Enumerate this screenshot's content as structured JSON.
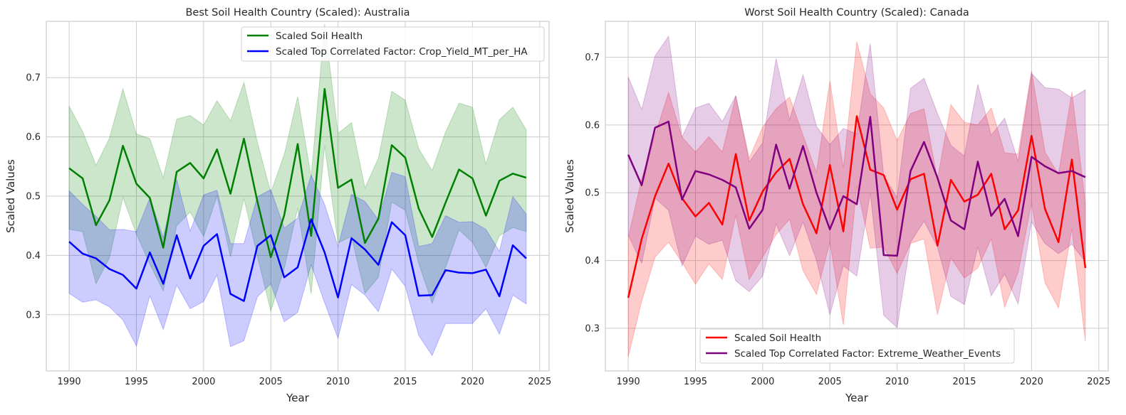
{
  "figure": {
    "background": "#ffffff",
    "plot_background": "#ffffff",
    "grid_color": "#cccccc"
  },
  "chart_data": [
    {
      "type": "line",
      "title": "Best Soil Health Country (Scaled): Australia",
      "xlabel": "Year",
      "ylabel": "Scaled Values",
      "xlim": [
        1988.3,
        2025.7
      ],
      "ylim": [
        0.205,
        0.795
      ],
      "xticks": [
        1990,
        1995,
        2000,
        2005,
        2010,
        2015,
        2020,
        2025
      ],
      "yticks": [
        0.3,
        0.4,
        0.5,
        0.6,
        0.7
      ],
      "grid": true,
      "legend_position": "upper right",
      "x": [
        1990,
        1991,
        1992,
        1993,
        1994,
        1995,
        1996,
        1997,
        1998,
        1999,
        2000,
        2001,
        2002,
        2003,
        2004,
        2005,
        2006,
        2007,
        2008,
        2009,
        2010,
        2011,
        2012,
        2013,
        2014,
        2015,
        2016,
        2017,
        2018,
        2019,
        2020,
        2021,
        2022,
        2023,
        2024
      ],
      "series": [
        {
          "name": "Scaled Soil Health",
          "color": "#008000",
          "values": [
            0.547,
            0.53,
            0.451,
            0.493,
            0.585,
            0.521,
            0.497,
            0.413,
            0.541,
            0.556,
            0.53,
            0.579,
            0.504,
            0.597,
            0.491,
            0.397,
            0.468,
            0.588,
            0.433,
            0.681,
            0.514,
            0.528,
            0.421,
            0.462,
            0.586,
            0.565,
            0.479,
            0.431,
            0.489,
            0.545,
            0.53,
            0.467,
            0.526,
            0.538,
            0.531
          ],
          "upper": [
            0.652,
            0.609,
            0.552,
            0.598,
            0.681,
            0.605,
            0.597,
            0.531,
            0.63,
            0.636,
            0.62,
            0.661,
            0.627,
            0.692,
            0.591,
            0.506,
            0.57,
            0.668,
            0.532,
            0.79,
            0.606,
            0.624,
            0.514,
            0.564,
            0.677,
            0.662,
            0.58,
            0.543,
            0.608,
            0.657,
            0.65,
            0.554,
            0.629,
            0.65,
            0.612
          ],
          "lower": [
            0.444,
            0.44,
            0.352,
            0.396,
            0.498,
            0.436,
            0.385,
            0.34,
            0.45,
            0.473,
            0.432,
            0.5,
            0.398,
            0.496,
            0.399,
            0.306,
            0.378,
            0.48,
            0.335,
            0.585,
            0.421,
            0.432,
            0.336,
            0.363,
            0.49,
            0.476,
            0.387,
            0.319,
            0.38,
            0.443,
            0.422,
            0.38,
            0.433,
            0.447,
            0.44
          ]
        },
        {
          "name": "Scaled Top Correlated Factor: Crop_Yield_MT_per_HA",
          "color": "#0000ff",
          "values": [
            0.423,
            0.403,
            0.395,
            0.377,
            0.367,
            0.344,
            0.405,
            0.352,
            0.434,
            0.361,
            0.416,
            0.436,
            0.335,
            0.323,
            0.416,
            0.434,
            0.363,
            0.38,
            0.461,
            0.405,
            0.329,
            0.429,
            0.41,
            0.384,
            0.456,
            0.434,
            0.332,
            0.333,
            0.375,
            0.371,
            0.37,
            0.376,
            0.331,
            0.417,
            0.395
          ],
          "upper": [
            0.509,
            0.486,
            0.466,
            0.443,
            0.444,
            0.44,
            0.497,
            0.43,
            0.528,
            0.441,
            0.502,
            0.51,
            0.42,
            0.42,
            0.499,
            0.511,
            0.446,
            0.463,
            0.535,
            0.486,
            0.415,
            0.503,
            0.491,
            0.46,
            0.54,
            0.533,
            0.415,
            0.42,
            0.467,
            0.456,
            0.457,
            0.444,
            0.407,
            0.499,
            0.47
          ],
          "lower": [
            0.336,
            0.321,
            0.325,
            0.313,
            0.291,
            0.247,
            0.332,
            0.275,
            0.35,
            0.31,
            0.322,
            0.367,
            0.246,
            0.256,
            0.33,
            0.352,
            0.288,
            0.304,
            0.384,
            0.32,
            0.26,
            0.351,
            0.333,
            0.305,
            0.377,
            0.348,
            0.265,
            0.231,
            0.285,
            0.285,
            0.285,
            0.31,
            0.267,
            0.333,
            0.318
          ]
        }
      ]
    },
    {
      "type": "line",
      "title": "Worst Soil Health Country (Scaled): Canada",
      "xlabel": "Year",
      "ylabel": "Scaled Values",
      "xlim": [
        1988.3,
        2025.7
      ],
      "ylim": [
        0.237,
        0.753
      ],
      "xticks": [
        1990,
        1995,
        2000,
        2005,
        2010,
        2015,
        2020,
        2025
      ],
      "yticks": [
        0.3,
        0.4,
        0.5,
        0.6,
        0.7
      ],
      "grid": true,
      "legend_position": "lower center",
      "x": [
        1990,
        1991,
        1992,
        1993,
        1994,
        1995,
        1996,
        1997,
        1998,
        1999,
        2000,
        2001,
        2002,
        2003,
        2004,
        2005,
        2006,
        2007,
        2008,
        2009,
        2010,
        2011,
        2012,
        2013,
        2014,
        2015,
        2016,
        2017,
        2018,
        2019,
        2020,
        2021,
        2022,
        2023,
        2024
      ],
      "series": [
        {
          "name": "Scaled Soil Health",
          "color": "#ff0000",
          "values": [
            0.345,
            0.432,
            0.495,
            0.543,
            0.492,
            0.465,
            0.485,
            0.453,
            0.557,
            0.459,
            0.502,
            0.53,
            0.55,
            0.483,
            0.44,
            0.541,
            0.443,
            0.613,
            0.534,
            0.526,
            0.475,
            0.52,
            0.528,
            0.422,
            0.519,
            0.487,
            0.497,
            0.528,
            0.446,
            0.474,
            0.584,
            0.476,
            0.427,
            0.549,
            0.389
          ],
          "upper": [
            0.434,
            0.521,
            0.585,
            0.648,
            0.582,
            0.56,
            0.583,
            0.56,
            0.643,
            0.551,
            0.597,
            0.624,
            0.641,
            0.585,
            0.53,
            0.665,
            0.536,
            0.723,
            0.646,
            0.625,
            0.577,
            0.617,
            0.624,
            0.52,
            0.63,
            0.604,
            0.6,
            0.625,
            0.559,
            0.557,
            0.68,
            0.56,
            0.527,
            0.649,
            0.485
          ],
          "lower": [
            0.258,
            0.34,
            0.405,
            0.427,
            0.397,
            0.365,
            0.395,
            0.372,
            0.467,
            0.372,
            0.405,
            0.438,
            0.461,
            0.385,
            0.35,
            0.427,
            0.305,
            0.51,
            0.418,
            0.42,
            0.381,
            0.425,
            0.432,
            0.32,
            0.404,
            0.374,
            0.389,
            0.432,
            0.331,
            0.382,
            0.485,
            0.367,
            0.33,
            0.447,
            0.281
          ]
        },
        {
          "name": "Scaled Top Correlated Factor: Extreme_Weather_Events",
          "color": "#800080",
          "values": [
            0.556,
            0.511,
            0.596,
            0.605,
            0.49,
            0.532,
            0.527,
            0.519,
            0.508,
            0.447,
            0.475,
            0.571,
            0.506,
            0.569,
            0.5,
            0.446,
            0.495,
            0.483,
            0.612,
            0.408,
            0.407,
            0.532,
            0.575,
            0.522,
            0.459,
            0.446,
            0.546,
            0.466,
            0.491,
            0.436,
            0.553,
            0.539,
            0.529,
            0.532,
            0.523
          ],
          "upper": [
            0.671,
            0.623,
            0.702,
            0.731,
            0.582,
            0.625,
            0.632,
            0.605,
            0.643,
            0.545,
            0.574,
            0.698,
            0.608,
            0.674,
            0.598,
            0.571,
            0.595,
            0.587,
            0.72,
            0.525,
            0.493,
            0.654,
            0.669,
            0.617,
            0.57,
            0.554,
            0.66,
            0.585,
            0.61,
            0.546,
            0.676,
            0.655,
            0.653,
            0.64,
            0.652
          ],
          "lower": [
            0.437,
            0.396,
            0.492,
            0.474,
            0.392,
            0.436,
            0.424,
            0.43,
            0.37,
            0.354,
            0.377,
            0.454,
            0.407,
            0.457,
            0.4,
            0.32,
            0.392,
            0.377,
            0.5,
            0.319,
            0.301,
            0.427,
            0.458,
            0.42,
            0.347,
            0.335,
            0.42,
            0.348,
            0.38,
            0.336,
            0.457,
            0.425,
            0.41,
            0.424,
            0.398
          ]
        }
      ]
    }
  ]
}
